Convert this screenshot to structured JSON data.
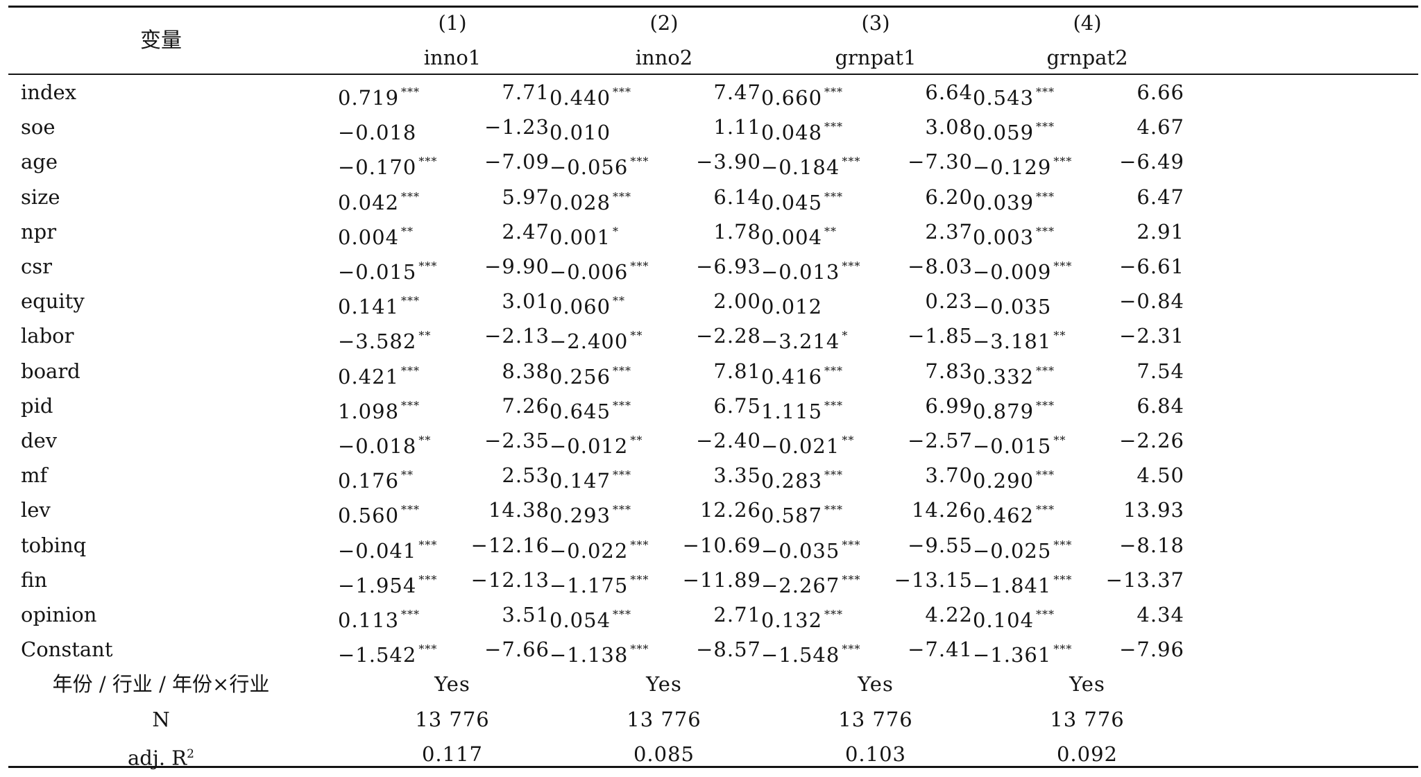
{
  "header": {
    "var_label": "变量",
    "columns": [
      {
        "num": "(1)",
        "name": "inno1"
      },
      {
        "num": "(2)",
        "name": "inno2"
      },
      {
        "num": "(3)",
        "name": "grnpat1"
      },
      {
        "num": "(4)",
        "name": "grnpat2"
      }
    ]
  },
  "rows": [
    {
      "var": "index",
      "cells": [
        [
          "0.719",
          "***",
          "7.71"
        ],
        [
          "0.440",
          "***",
          "7.47"
        ],
        [
          "0.660",
          "***",
          "6.64"
        ],
        [
          "0.543",
          "***",
          "6.66"
        ]
      ]
    },
    {
      "var": "soe",
      "cells": [
        [
          "−0.018",
          "",
          "−1.23"
        ],
        [
          "0.010",
          "",
          "1.11"
        ],
        [
          "0.048",
          "***",
          "3.08"
        ],
        [
          "0.059",
          "***",
          "4.67"
        ]
      ]
    },
    {
      "var": "age",
      "cells": [
        [
          "−0.170",
          "***",
          "−7.09"
        ],
        [
          "−0.056",
          "***",
          "−3.90"
        ],
        [
          "−0.184",
          "***",
          "−7.30"
        ],
        [
          "−0.129",
          "***",
          "−6.49"
        ]
      ]
    },
    {
      "var": "size",
      "cells": [
        [
          "0.042",
          "***",
          "5.97"
        ],
        [
          "0.028",
          "***",
          "6.14"
        ],
        [
          "0.045",
          "***",
          "6.20"
        ],
        [
          "0.039",
          "***",
          "6.47"
        ]
      ]
    },
    {
      "var": "npr",
      "cells": [
        [
          "0.004",
          "**",
          "2.47"
        ],
        [
          "0.001",
          "*",
          "1.78"
        ],
        [
          "0.004",
          "**",
          "2.37"
        ],
        [
          "0.003",
          "***",
          "2.91"
        ]
      ]
    },
    {
      "var": "csr",
      "cells": [
        [
          "−0.015",
          "***",
          "−9.90"
        ],
        [
          "−0.006",
          "***",
          "−6.93"
        ],
        [
          "−0.013",
          "***",
          "−8.03"
        ],
        [
          "−0.009",
          "***",
          "−6.61"
        ]
      ]
    },
    {
      "var": "equity",
      "cells": [
        [
          "0.141",
          "***",
          "3.01"
        ],
        [
          "0.060",
          "**",
          "2.00"
        ],
        [
          "0.012",
          "",
          "0.23"
        ],
        [
          "−0.035",
          "",
          "−0.84"
        ]
      ]
    },
    {
      "var": "labor",
      "cells": [
        [
          "−3.582",
          "**",
          "−2.13"
        ],
        [
          "−2.400",
          "**",
          "−2.28"
        ],
        [
          "−3.214",
          "*",
          "−1.85"
        ],
        [
          "−3.181",
          "**",
          "−2.31"
        ]
      ]
    },
    {
      "var": "board",
      "cells": [
        [
          "0.421",
          "***",
          "8.38"
        ],
        [
          "0.256",
          "***",
          "7.81"
        ],
        [
          "0.416",
          "***",
          "7.83"
        ],
        [
          "0.332",
          "***",
          "7.54"
        ]
      ]
    },
    {
      "var": "pid",
      "cells": [
        [
          "1.098",
          "***",
          "7.26"
        ],
        [
          "0.645",
          "***",
          "6.75"
        ],
        [
          "1.115",
          "***",
          "6.99"
        ],
        [
          "0.879",
          "***",
          "6.84"
        ]
      ]
    },
    {
      "var": "dev",
      "cells": [
        [
          "−0.018",
          "**",
          "−2.35"
        ],
        [
          "−0.012",
          "**",
          "−2.40"
        ],
        [
          "−0.021",
          "**",
          "−2.57"
        ],
        [
          "−0.015",
          "**",
          "−2.26"
        ]
      ]
    },
    {
      "var": "mf",
      "cells": [
        [
          "0.176",
          "**",
          "2.53"
        ],
        [
          "0.147",
          "***",
          "3.35"
        ],
        [
          "0.283",
          "***",
          "3.70"
        ],
        [
          "0.290",
          "***",
          "4.50"
        ]
      ]
    },
    {
      "var": "lev",
      "cells": [
        [
          "0.560",
          "***",
          "14.38"
        ],
        [
          "0.293",
          "***",
          "12.26"
        ],
        [
          "0.587",
          "***",
          "14.26"
        ],
        [
          "0.462",
          "***",
          "13.93"
        ]
      ]
    },
    {
      "var": "tobinq",
      "cells": [
        [
          "−0.041",
          "***",
          "−12.16"
        ],
        [
          "−0.022",
          "***",
          "−10.69"
        ],
        [
          "−0.035",
          "***",
          "−9.55"
        ],
        [
          "−0.025",
          "***",
          "−8.18"
        ]
      ]
    },
    {
      "var": "fin",
      "cells": [
        [
          "−1.954",
          "***",
          "−12.13"
        ],
        [
          "−1.175",
          "***",
          "−11.89"
        ],
        [
          "−2.267",
          "***",
          "−13.15"
        ],
        [
          "−1.841",
          "***",
          "−13.37"
        ]
      ]
    },
    {
      "var": "opinion",
      "cells": [
        [
          "0.113",
          "***",
          "3.51"
        ],
        [
          "0.054",
          "***",
          "2.71"
        ],
        [
          "0.132",
          "***",
          "4.22"
        ],
        [
          "0.104",
          "***",
          "4.34"
        ]
      ]
    },
    {
      "var": "Constant",
      "cells": [
        [
          "−1.542",
          "***",
          "−7.66"
        ],
        [
          "−1.138",
          "***",
          "−8.57"
        ],
        [
          "−1.548",
          "***",
          "−7.41"
        ],
        [
          "−1.361",
          "***",
          "−7.96"
        ]
      ]
    }
  ],
  "footer": [
    {
      "label": "年份 / 行业 / 年份×行业",
      "values": [
        "Yes",
        "Yes",
        "Yes",
        "Yes"
      ]
    },
    {
      "label": "N",
      "values": [
        "13 776",
        "13 776",
        "13 776",
        "13 776"
      ]
    },
    {
      "label": "adj. R",
      "label_sup": "2",
      "values": [
        "0.117",
        "0.085",
        "0.103",
        "0.092"
      ]
    }
  ]
}
